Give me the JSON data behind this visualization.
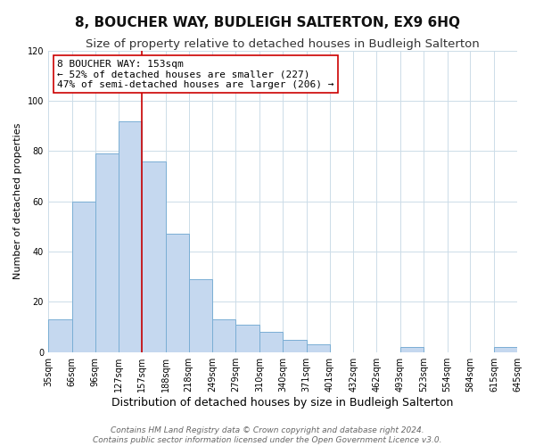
{
  "title": "8, BOUCHER WAY, BUDLEIGH SALTERTON, EX9 6HQ",
  "subtitle": "Size of property relative to detached houses in Budleigh Salterton",
  "xlabel": "Distribution of detached houses by size in Budleigh Salterton",
  "ylabel": "Number of detached properties",
  "footer_line1": "Contains HM Land Registry data © Crown copyright and database right 2024.",
  "footer_line2": "Contains public sector information licensed under the Open Government Licence v3.0.",
  "annotation_title": "8 BOUCHER WAY: 153sqm",
  "annotation_line2": "← 52% of detached houses are smaller (227)",
  "annotation_line3": "47% of semi-detached houses are larger (206) →",
  "bar_edges": [
    35,
    66,
    96,
    127,
    157,
    188,
    218,
    249,
    279,
    310,
    340,
    371,
    401,
    432,
    462,
    493,
    523,
    554,
    584,
    615,
    645
  ],
  "bar_heights": [
    13,
    60,
    79,
    92,
    76,
    47,
    29,
    13,
    11,
    8,
    5,
    3,
    0,
    0,
    0,
    2,
    0,
    0,
    0,
    2
  ],
  "bar_color": "#c5d8ef",
  "bar_edge_color": "#7aaed4",
  "reference_line_x": 157,
  "reference_line_color": "#cc0000",
  "annotation_box_edge_color": "#cc0000",
  "ylim": [
    0,
    120
  ],
  "yticks": [
    0,
    20,
    40,
    60,
    80,
    100,
    120
  ],
  "background_color": "#ffffff",
  "grid_color": "#ccdce8",
  "title_fontsize": 11,
  "subtitle_fontsize": 9.5,
  "xlabel_fontsize": 9,
  "ylabel_fontsize": 8,
  "tick_fontsize": 7,
  "annotation_fontsize": 8,
  "footer_fontsize": 6.5
}
